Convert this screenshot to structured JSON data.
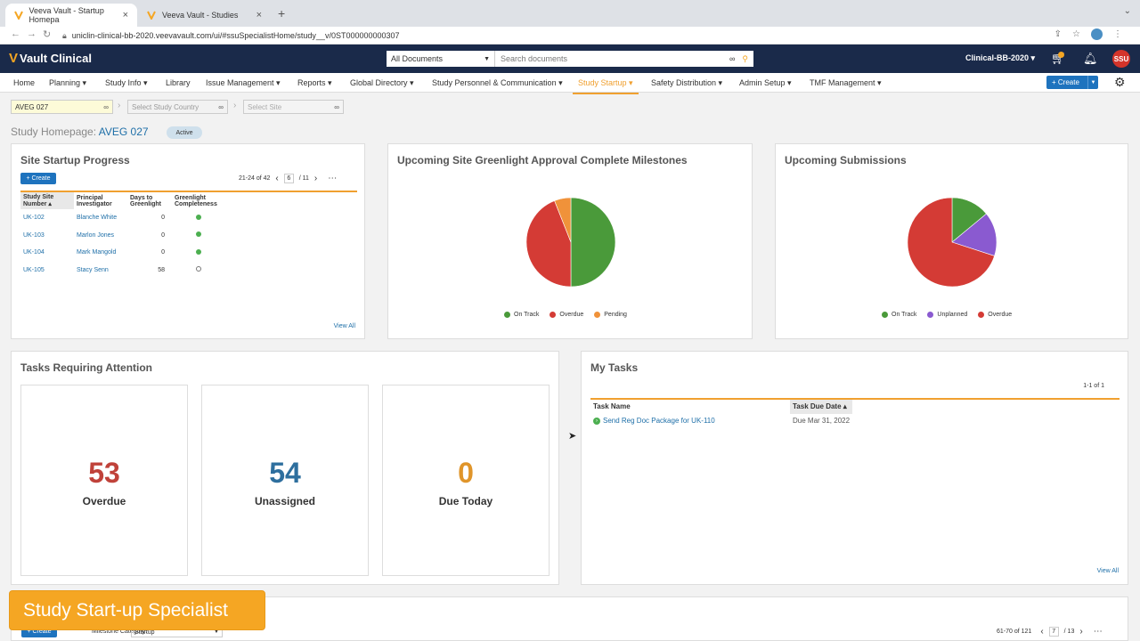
{
  "browser": {
    "tabs": [
      {
        "title": "Veeva Vault - Startup Homepa"
      },
      {
        "title": "Veeva Vault - Studies"
      }
    ],
    "url": "uniclin-clinical-bb-2020.veevavault.com/ui/#ssuSpecialistHome/study__v/0ST000000000307"
  },
  "header": {
    "logo_text": "Vault Clinical",
    "doc_scope": "All Documents",
    "search_placeholder": "Search documents",
    "vault_name": "Clinical-BB-2020",
    "avatar_initials": "SSU"
  },
  "nav": {
    "items": [
      {
        "label": "Home"
      },
      {
        "label": "Planning"
      },
      {
        "label": "Study Info"
      },
      {
        "label": "Library"
      },
      {
        "label": "Issue Management"
      },
      {
        "label": "Reports"
      },
      {
        "label": "Global Directory"
      },
      {
        "label": "Study Personnel & Communication"
      },
      {
        "label": "Study Startup"
      },
      {
        "label": "Safety Distribution"
      },
      {
        "label": "Admin Setup"
      },
      {
        "label": "TMF Management"
      }
    ],
    "create_label": "+ Create"
  },
  "filters": {
    "study": "AVEG 027",
    "country_placeholder": "Select Study Country",
    "site_placeholder": "Select Site"
  },
  "page": {
    "title_prefix": "Study Homepage:",
    "study": "AVEG 027",
    "status": "Active"
  },
  "site_startup": {
    "title": "Site Startup Progress",
    "create_label": "+ Create",
    "range": "21-24 of 42",
    "page": "6",
    "total_pages": "/ 11",
    "columns": [
      "Study Site Number",
      "Principal Investigator",
      "Days to Greenlight",
      "Greenlight Completeness"
    ],
    "rows": [
      {
        "site": "UK-102",
        "pi": "Blanche White",
        "days": "0",
        "complete": true
      },
      {
        "site": "UK-103",
        "pi": "Marlon Jones",
        "days": "0",
        "complete": true
      },
      {
        "site": "UK-104",
        "pi": "Mark Mangold",
        "days": "0",
        "complete": true
      },
      {
        "site": "UK-105",
        "pi": "Stacy Senn",
        "days": "58",
        "complete": false
      }
    ],
    "view_all": "View All"
  },
  "greenlight_chart": {
    "title": "Upcoming Site Greenlight Approval Complete Milestones",
    "chart_data": {
      "type": "pie",
      "slices": [
        {
          "label": "On Track",
          "value": 50,
          "color": "#4a9a3a"
        },
        {
          "label": "Overdue",
          "value": 44,
          "color": "#d43b35"
        },
        {
          "label": "Pending",
          "value": 6,
          "color": "#f0923a"
        }
      ]
    }
  },
  "submissions_chart": {
    "title": "Upcoming Submissions",
    "chart_data": {
      "type": "pie",
      "slices": [
        {
          "label": "On Track",
          "value": 14,
          "color": "#4a9a3a"
        },
        {
          "label": "Unplanned",
          "value": 16,
          "color": "#8a5ad0"
        },
        {
          "label": "Overdue",
          "value": 70,
          "color": "#d43b35"
        }
      ]
    }
  },
  "tasks_attention": {
    "title": "Tasks Requiring Attention",
    "tiles": [
      {
        "value": "53",
        "label": "Overdue",
        "color": "#c0423a"
      },
      {
        "value": "54",
        "label": "Unassigned",
        "color": "#2e6f9e"
      },
      {
        "value": "0",
        "label": "Due Today",
        "color": "#e0952a"
      }
    ]
  },
  "my_tasks": {
    "title": "My Tasks",
    "count": "1-1 of 1",
    "columns": [
      "Task Name",
      "Task Due Date"
    ],
    "rows": [
      {
        "name": "Send Reg Doc Package for UK-110",
        "due": "Due Mar 31, 2022"
      }
    ],
    "view_all": "View All"
  },
  "milestones": {
    "create_label": "+ Create",
    "category_label": "Milestone Category:",
    "category_value": "Startup",
    "range": "61-70 of 121",
    "page": "7",
    "total_pages": "/ 13"
  },
  "overlay_caption": "Study Start-up Specialist"
}
